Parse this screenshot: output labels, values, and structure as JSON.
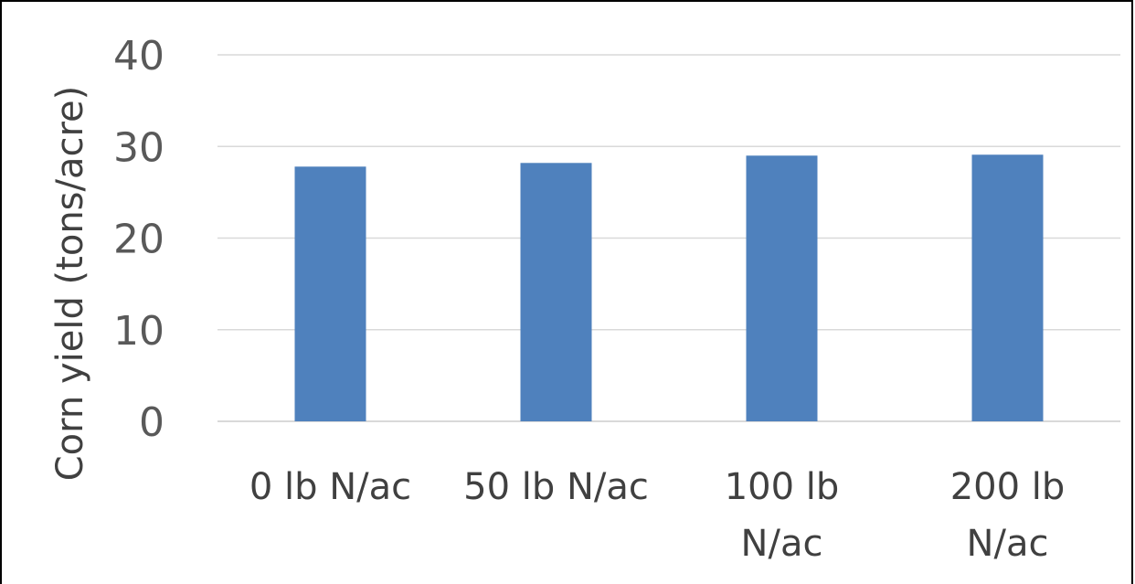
{
  "chart_data": {
    "type": "bar",
    "categories": [
      [
        "0 lb N/ac"
      ],
      [
        "50 lb N/ac"
      ],
      [
        "100 lb",
        "N/ac"
      ],
      [
        "200 lb",
        "N/ac"
      ]
    ],
    "values": [
      27.8,
      28.2,
      29.0,
      29.1
    ],
    "title": "",
    "xlabel": "",
    "ylabel": "Corn yield (tons/acre)",
    "ylim": [
      0,
      40
    ],
    "yticks": [
      0,
      10,
      20,
      30,
      40
    ],
    "grid": true,
    "legend": "none",
    "colors": {
      "bar": "#4F81BD",
      "grid": "#D9D9D9"
    }
  }
}
